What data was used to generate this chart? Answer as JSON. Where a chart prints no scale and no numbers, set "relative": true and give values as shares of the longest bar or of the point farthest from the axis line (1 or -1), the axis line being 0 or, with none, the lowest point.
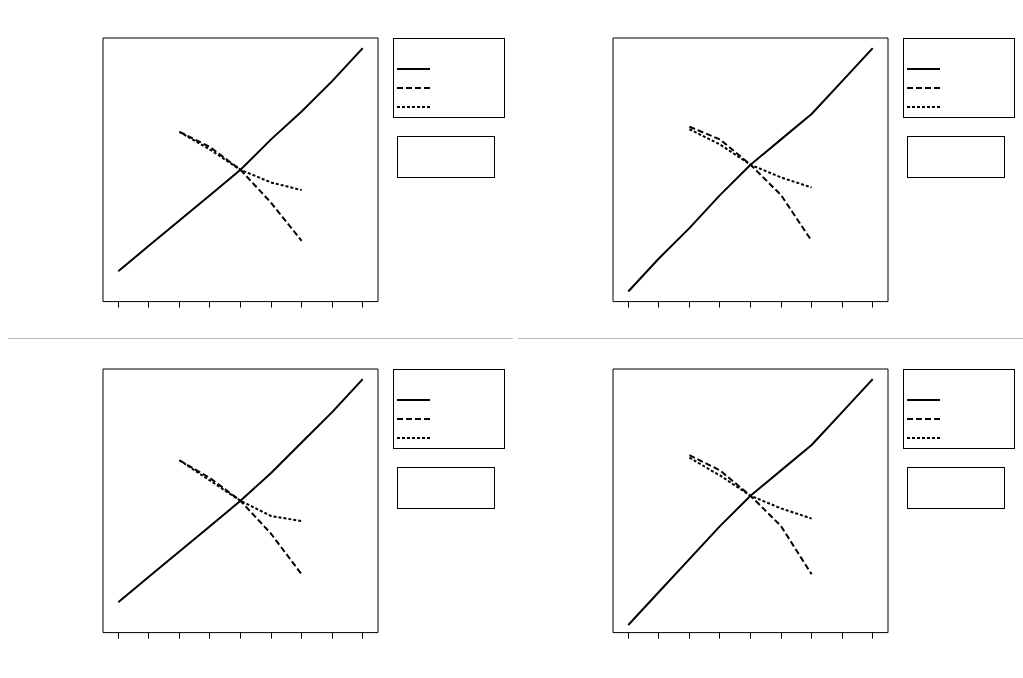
{
  "chart_data": [
    {
      "type": "line",
      "relative": true,
      "categories": [
        null,
        null,
        null,
        null,
        null,
        null,
        null,
        null,
        null
      ],
      "grid": false,
      "marker": "none",
      "series": [
        {
          "color": "#000000",
          "line_style": "solid",
          "values": [
            0.12,
            0.22,
            0.32,
            0.42,
            0.52,
            0.64,
            0.75,
            0.87,
            1
          ]
        },
        {
          "color": "#000000",
          "line_style": "dashed",
          "values": [
            null,
            null,
            0.67,
            0.61,
            0.52,
            0.39,
            0.24,
            null,
            null
          ]
        },
        {
          "color": "#000000",
          "line_style": "dotted",
          "values": [
            null,
            null,
            0.67,
            0.6,
            0.52,
            0.47,
            0.44,
            null,
            null
          ]
        }
      ]
    },
    {
      "type": "line",
      "relative": true,
      "categories": [
        null,
        null,
        null,
        null,
        null,
        null,
        null,
        null,
        null
      ],
      "grid": false,
      "marker": "none",
      "series": [
        {
          "color": "#000000",
          "line_style": "solid",
          "values": [
            0.04,
            0.17,
            0.29,
            0.42,
            0.54,
            0.64,
            0.74,
            0.87,
            1
          ]
        },
        {
          "color": "#000000",
          "line_style": "dashed",
          "values": [
            null,
            null,
            0.69,
            0.64,
            0.54,
            0.42,
            0.24,
            null,
            null
          ]
        },
        {
          "color": "#000000",
          "line_style": "dotted",
          "values": [
            null,
            null,
            0.68,
            0.62,
            0.54,
            0.49,
            0.45,
            null,
            null
          ]
        }
      ]
    },
    {
      "type": "line",
      "relative": true,
      "categories": [
        null,
        null,
        null,
        null,
        null,
        null,
        null,
        null,
        null
      ],
      "grid": false,
      "marker": "none",
      "series": [
        {
          "color": "#000000",
          "line_style": "solid",
          "values": [
            0.12,
            0.22,
            0.32,
            0.42,
            0.52,
            0.63,
            0.75,
            0.87,
            1
          ]
        },
        {
          "color": "#000000",
          "line_style": "dashed",
          "values": [
            null,
            null,
            0.68,
            0.61,
            0.52,
            0.39,
            0.23,
            null,
            null
          ]
        },
        {
          "color": "#000000",
          "line_style": "dotted",
          "values": [
            null,
            null,
            0.68,
            0.6,
            0.52,
            0.46,
            0.44,
            null,
            null
          ]
        }
      ]
    },
    {
      "type": "line",
      "relative": true,
      "categories": [
        null,
        null,
        null,
        null,
        null,
        null,
        null,
        null,
        null
      ],
      "grid": false,
      "marker": "none",
      "series": [
        {
          "color": "#000000",
          "line_style": "solid",
          "values": [
            0.03,
            0.16,
            0.29,
            0.42,
            0.54,
            0.64,
            0.74,
            0.87,
            1
          ]
        },
        {
          "color": "#000000",
          "line_style": "dashed",
          "values": [
            null,
            null,
            0.7,
            0.64,
            0.54,
            0.42,
            0.23,
            null,
            null
          ]
        },
        {
          "color": "#000000",
          "line_style": "dotted",
          "values": [
            null,
            null,
            0.69,
            0.62,
            0.54,
            0.49,
            0.45,
            null,
            null
          ]
        }
      ]
    }
  ]
}
